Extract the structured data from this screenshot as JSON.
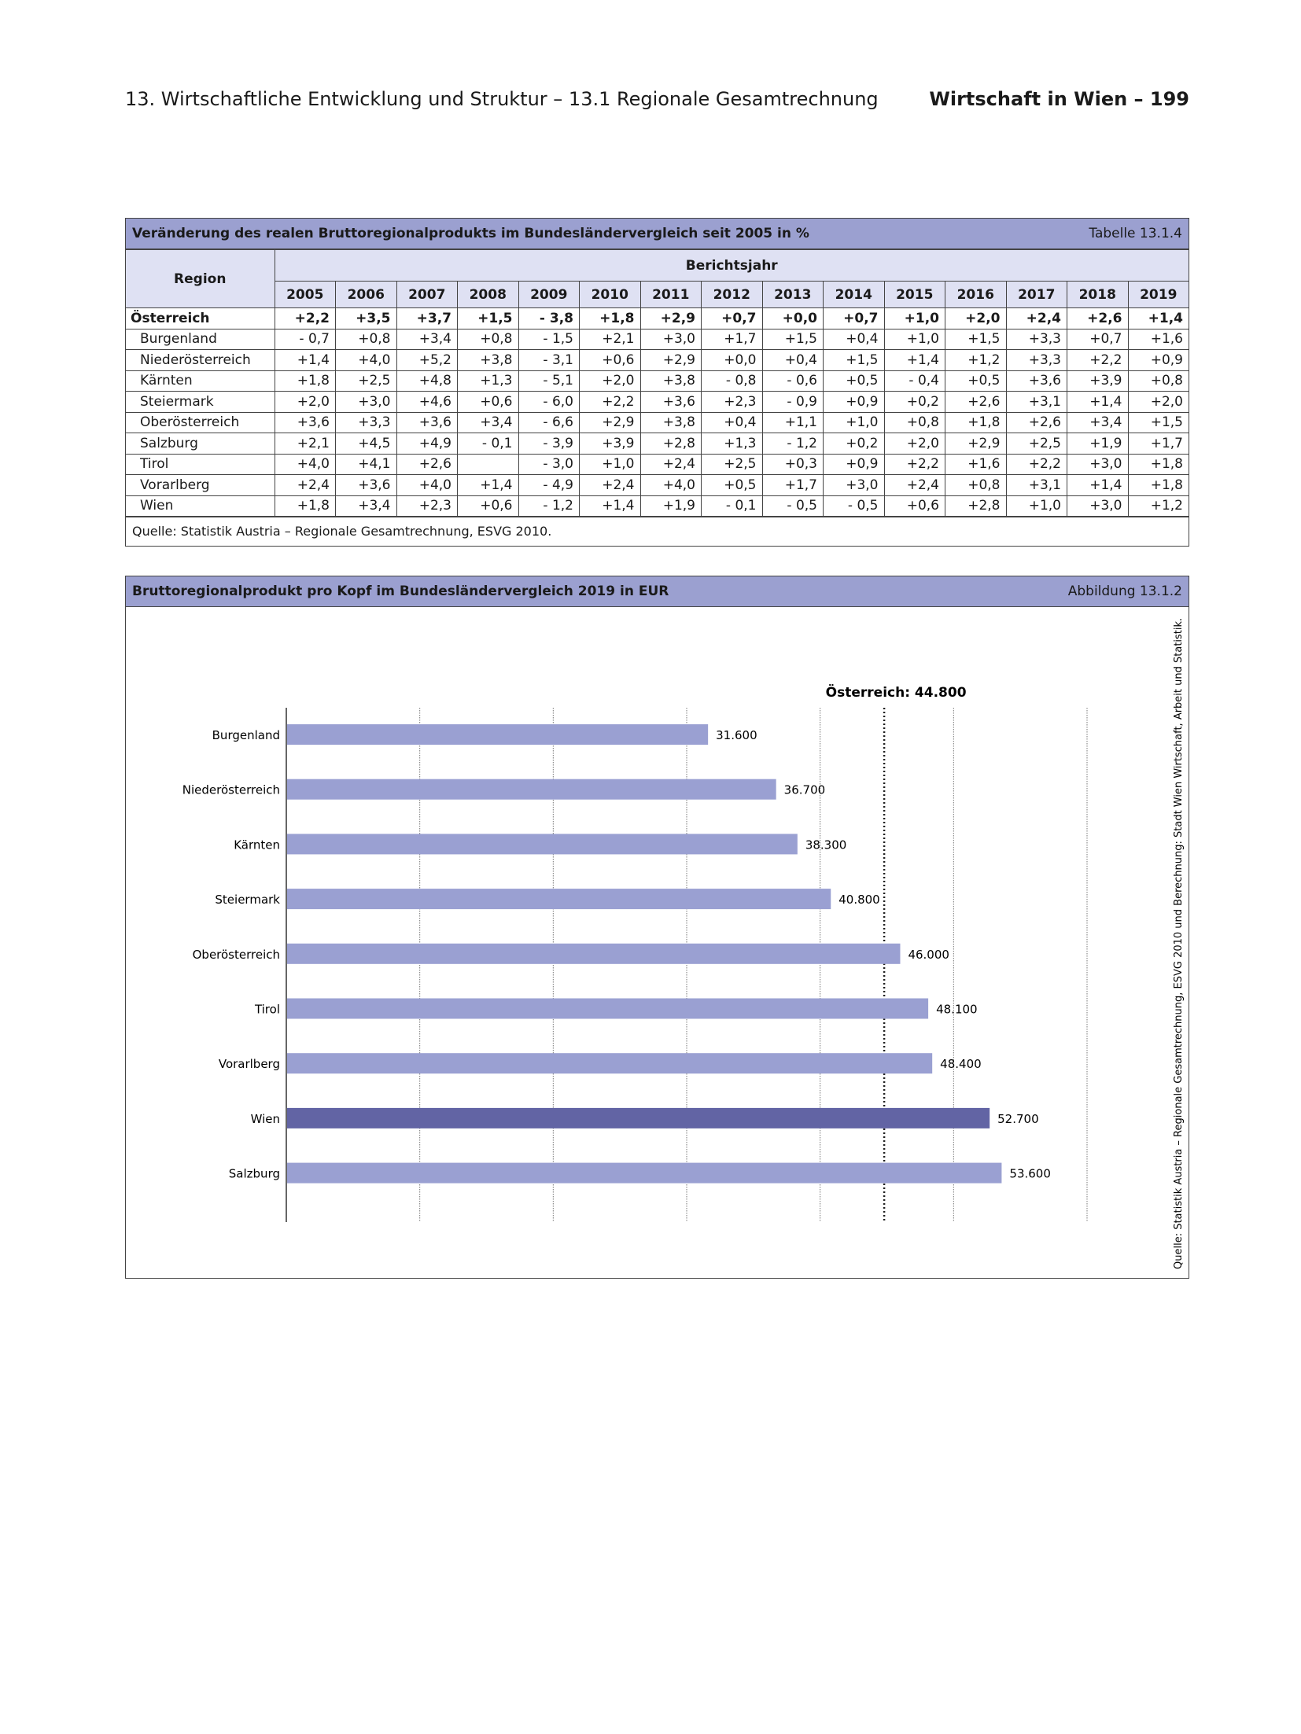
{
  "header": {
    "left": "13. Wirtschaftliche Entwicklung und Struktur – 13.1 Regionale Gesamtrechnung",
    "right": "Wirtschaft in Wien – 199"
  },
  "table": {
    "title": "Veränderung des realen Bruttoregionalprodukts im Bundesländervergleich seit 2005 in %",
    "label": "Tabelle 13.1.4",
    "region_header": "Region",
    "group_header": "Berichtsjahr",
    "years": [
      "2005",
      "2006",
      "2007",
      "2008",
      "2009",
      "2010",
      "2011",
      "2012",
      "2013",
      "2014",
      "2015",
      "2016",
      "2017",
      "2018",
      "2019"
    ],
    "rows": [
      {
        "region": "Österreich",
        "bold": true,
        "values": [
          "+2,2",
          "+3,5",
          "+3,7",
          "+1,5",
          "- 3,8",
          "+1,8",
          "+2,9",
          "+0,7",
          "+0,0",
          "+0,7",
          "+1,0",
          "+2,0",
          "+2,4",
          "+2,6",
          "+1,4"
        ]
      },
      {
        "region": "Burgenland",
        "values": [
          "- 0,7",
          "+0,8",
          "+3,4",
          "+0,8",
          "- 1,5",
          "+2,1",
          "+3,0",
          "+1,7",
          "+1,5",
          "+0,4",
          "+1,0",
          "+1,5",
          "+3,3",
          "+0,7",
          "+1,6"
        ]
      },
      {
        "region": "Niederösterreich",
        "values": [
          "+1,4",
          "+4,0",
          "+5,2",
          "+3,8",
          "- 3,1",
          "+0,6",
          "+2,9",
          "+0,0",
          "+0,4",
          "+1,5",
          "+1,4",
          "+1,2",
          "+3,3",
          "+2,2",
          "+0,9"
        ]
      },
      {
        "region": "Kärnten",
        "values": [
          "+1,8",
          "+2,5",
          "+4,8",
          "+1,3",
          "- 5,1",
          "+2,0",
          "+3,8",
          "- 0,8",
          "- 0,6",
          "+0,5",
          "- 0,4",
          "+0,5",
          "+3,6",
          "+3,9",
          "+0,8"
        ]
      },
      {
        "region": "Steiermark",
        "values": [
          "+2,0",
          "+3,0",
          "+4,6",
          "+0,6",
          "- 6,0",
          "+2,2",
          "+3,6",
          "+2,3",
          "- 0,9",
          "+0,9",
          "+0,2",
          "+2,6",
          "+3,1",
          "+1,4",
          "+2,0"
        ]
      },
      {
        "region": "Oberösterreich",
        "values": [
          "+3,6",
          "+3,3",
          "+3,6",
          "+3,4",
          "- 6,6",
          "+2,9",
          "+3,8",
          "+0,4",
          "+1,1",
          "+1,0",
          "+0,8",
          "+1,8",
          "+2,6",
          "+3,4",
          "+1,5"
        ]
      },
      {
        "region": "Salzburg",
        "values": [
          "+2,1",
          "+4,5",
          "+4,9",
          "- 0,1",
          "- 3,9",
          "+3,9",
          "+2,8",
          "+1,3",
          "- 1,2",
          "+0,2",
          "+2,0",
          "+2,9",
          "+2,5",
          "+1,9",
          "+1,7"
        ]
      },
      {
        "region": "Tirol",
        "values": [
          "+4,0",
          "+4,1",
          "+2,6",
          "",
          "- 3,0",
          "+1,0",
          "+2,4",
          "+2,5",
          "+0,3",
          "+0,9",
          "+2,2",
          "+1,6",
          "+2,2",
          "+3,0",
          "+1,8"
        ]
      },
      {
        "region": "Vorarlberg",
        "values": [
          "+2,4",
          "+3,6",
          "+4,0",
          "+1,4",
          "- 4,9",
          "+2,4",
          "+4,0",
          "+0,5",
          "+1,7",
          "+3,0",
          "+2,4",
          "+0,8",
          "+3,1",
          "+1,4",
          "+1,8"
        ]
      },
      {
        "region": "Wien",
        "values": [
          "+1,8",
          "+3,4",
          "+2,3",
          "+0,6",
          "- 1,2",
          "+1,4",
          "+1,9",
          "- 0,1",
          "- 0,5",
          "- 0,5",
          "+0,6",
          "+2,8",
          "+1,0",
          "+3,0",
          "+1,2"
        ]
      }
    ],
    "source": "Quelle: Statistik Austria – Regionale Gesamtrechnung, ESVG 2010."
  },
  "figure": {
    "title": "Bruttoregionalprodukt pro Kopf im Bundesländervergleich 2019 in EUR",
    "label": "Abbildung 13.1.2",
    "source": "Quelle: Statistik Austria – Regionale Gesamtrechnung, ESVG 2010 und  Berechnung: Stadt Wien Wirtschaft, Arbeit und Statistik."
  },
  "chart_data": {
    "type": "bar",
    "orientation": "horizontal",
    "title": "Bruttoregionalprodukt pro Kopf im Bundesländervergleich 2019 in EUR",
    "categories": [
      "Burgenland",
      "Niederösterreich",
      "Kärnten",
      "Steiermark",
      "Oberösterreich",
      "Tirol",
      "Vorarlberg",
      "Wien",
      "Salzburg"
    ],
    "values": [
      31600,
      36700,
      38300,
      40800,
      46000,
      48100,
      48400,
      52700,
      53600
    ],
    "labels": [
      "31.600",
      "36.700",
      "38.300",
      "40.800",
      "46.000",
      "48.100",
      "48.400",
      "52.700",
      "53.600"
    ],
    "highlight": "Wien",
    "reference": {
      "label": "Österreich: 44.800",
      "value": 44800
    },
    "xlim": [
      0,
      60000
    ],
    "grid": true,
    "grid_step": 10000,
    "colors": {
      "bar": "#9aa0d2",
      "highlight": "#6264a4"
    }
  }
}
